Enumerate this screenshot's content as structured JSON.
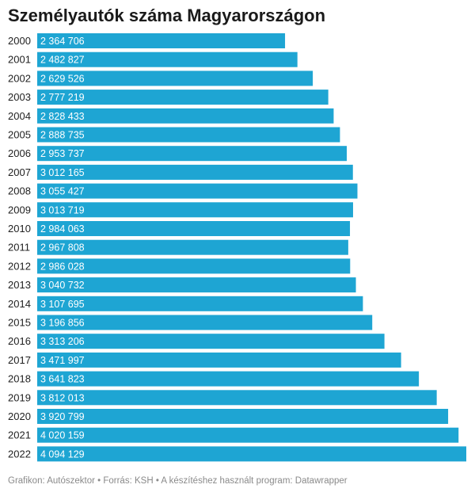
{
  "title": "Személyautók száma Magyarországon",
  "footer": "Grafikon: Autószektor • Forrás: KSH • A készítéshez használt program: Datawrapper",
  "colors": {
    "bar": "#1ea5d3",
    "bar_label": "#ffffff",
    "category_label": "#222222"
  },
  "chart_data": {
    "type": "bar",
    "orientation": "horizontal",
    "title": "Személyautók száma Magyarországon",
    "categories": [
      "2000",
      "2001",
      "2002",
      "2003",
      "2004",
      "2005",
      "2006",
      "2007",
      "2008",
      "2009",
      "2010",
      "2011",
      "2012",
      "2013",
      "2014",
      "2015",
      "2016",
      "2017",
      "2018",
      "2019",
      "2020",
      "2021",
      "2022"
    ],
    "values": [
      2364706,
      2482827,
      2629526,
      2777219,
      2828433,
      2888735,
      2953737,
      3012165,
      3055427,
      3013719,
      2984063,
      2967808,
      2986028,
      3040732,
      3107695,
      3196856,
      3313206,
      3471997,
      3641823,
      3812013,
      3920799,
      4020159,
      4094129
    ],
    "value_labels": [
      "2 364 706",
      "2 482 827",
      "2 629 526",
      "2 777 219",
      "2 828 433",
      "2 888 735",
      "2 953 737",
      "3 012 165",
      "3 055 427",
      "3 013 719",
      "2 984 063",
      "2 967 808",
      "2 986 028",
      "3 040 732",
      "3 107 695",
      "3 196 856",
      "3 313 206",
      "3 471 997",
      "3 641 823",
      "3 812 013",
      "3 920 799",
      "4 020 159",
      "4 094 129"
    ],
    "xlim": [
      0,
      4094129
    ],
    "grid": false,
    "legend": "none"
  }
}
